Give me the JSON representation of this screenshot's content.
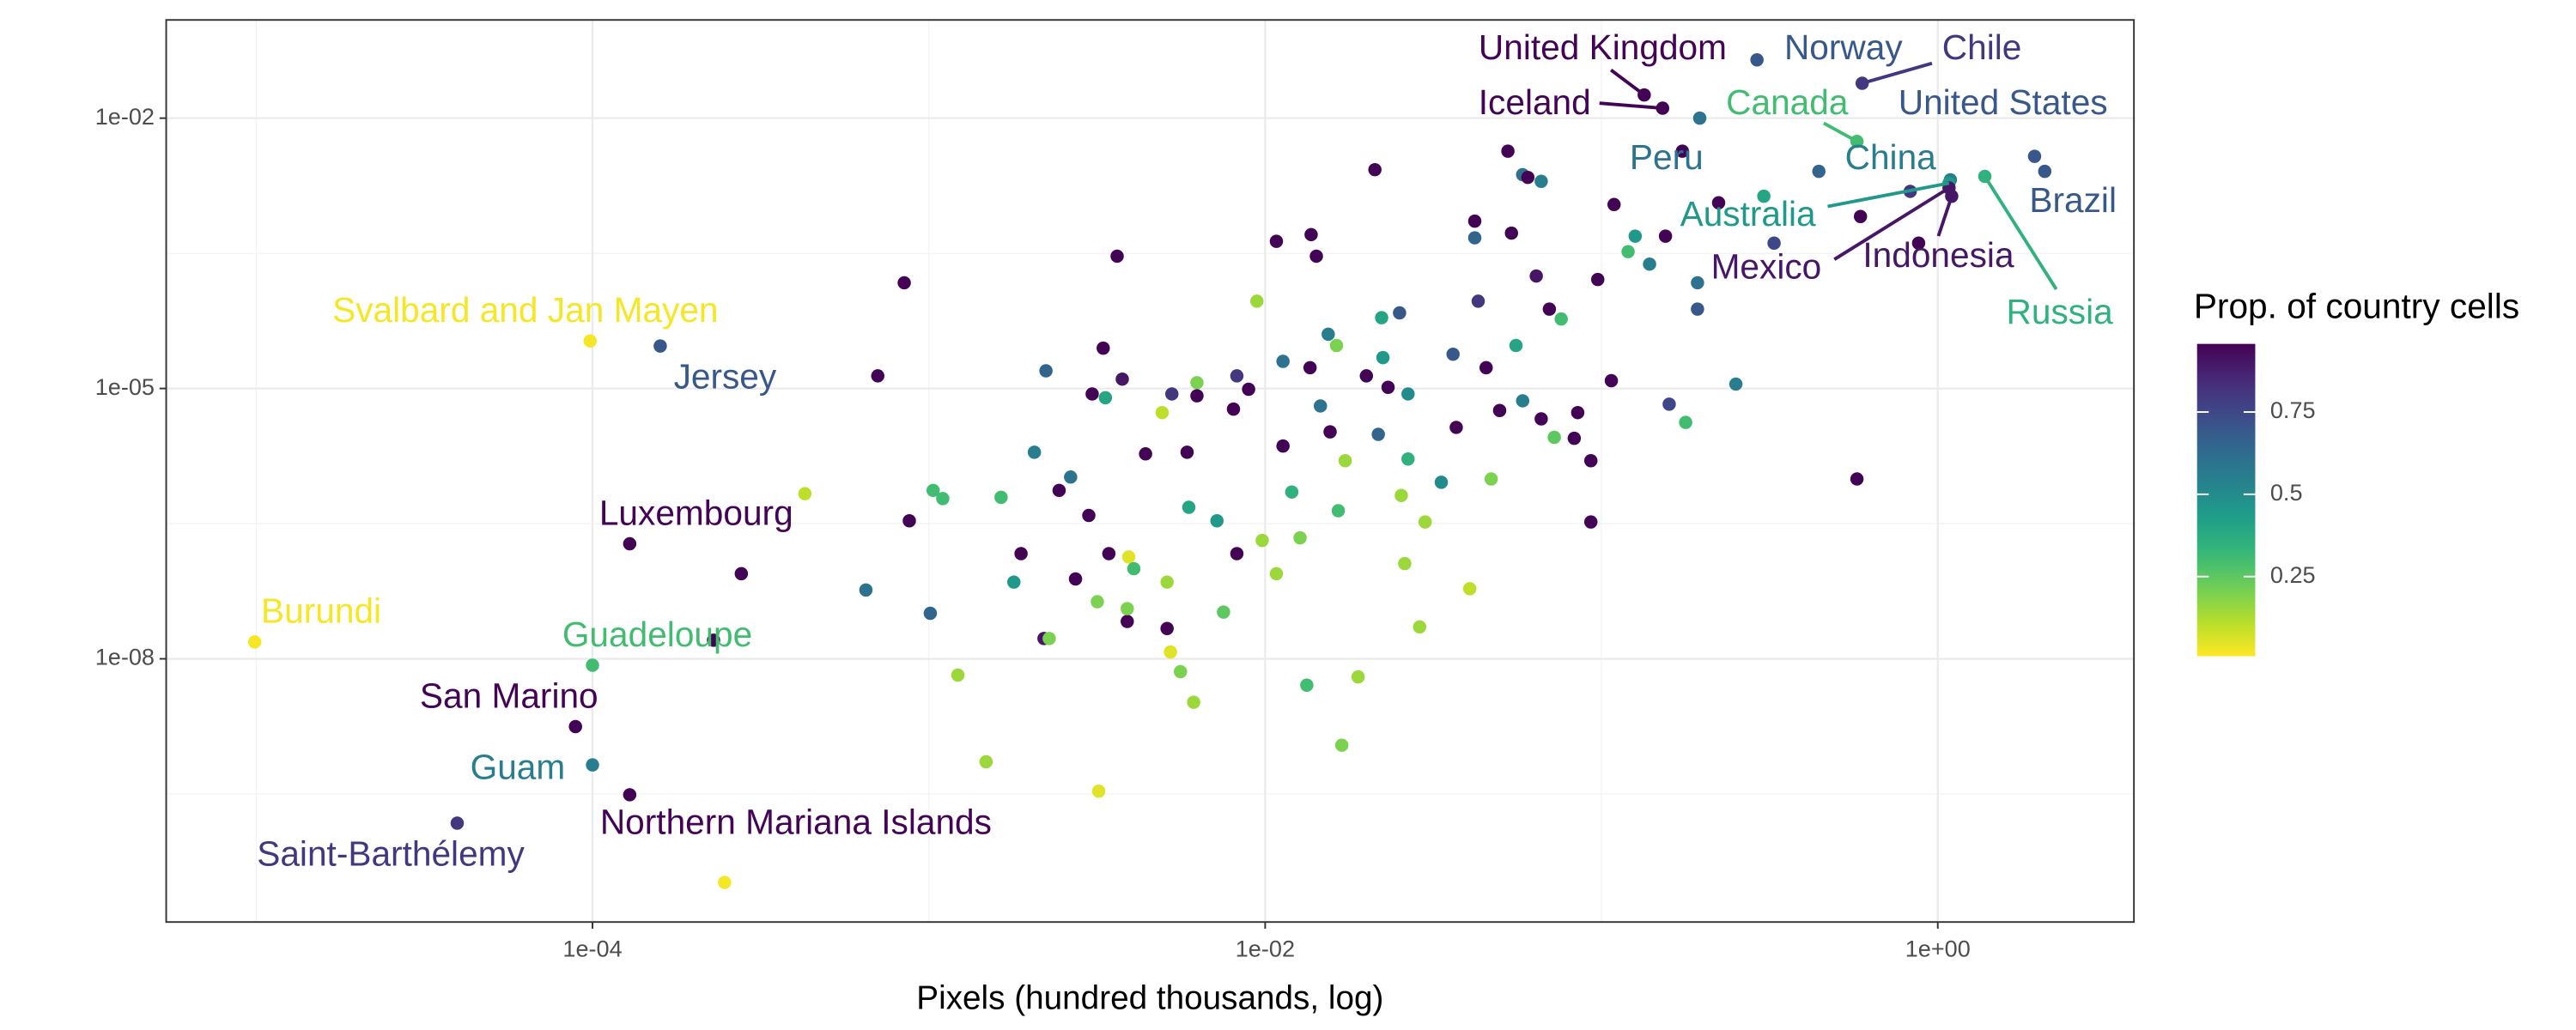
{
  "chart_data": {
    "type": "scatter",
    "x_label": "Pixels (hundred thousands, log)",
    "log_x": true,
    "log_y": true,
    "grid": true,
    "xlim": [
      5.4e-06,
      3.83
    ],
    "ylim": [
      1.2e-11,
      0.123
    ],
    "xticks": [
      {
        "value": 0.0001,
        "label": "1e-04"
      },
      {
        "value": 0.01,
        "label": "1e-02"
      },
      {
        "value": 1,
        "label": "1e+00"
      }
    ],
    "yticks": [
      {
        "value": 1e-08,
        "label": "1e-08"
      },
      {
        "value": 1e-05,
        "label": "1e-05"
      },
      {
        "value": 0.01,
        "label": "1e-02"
      }
    ],
    "xminor": [
      1e-05,
      0.001,
      0.1
    ],
    "yminor": [
      3.16e-10,
      3.16e-07,
      0.000316
    ],
    "legend": {
      "title": "Prop. of country cells",
      "position": "right",
      "colorscale": "viridis",
      "reverse": true,
      "lim": [
        0.008,
        0.957
      ],
      "ticks": [
        0.25,
        0.5,
        0.75
      ]
    },
    "x": [
      0.134,
      0.152,
      0.29,
      0.596,
      0.575,
      1.94,
      1.09,
      2.08,
      0.196,
      1.08,
      1.08,
      1.1,
      1.38,
      9.84e-05,
      0.000159,
      0.000129,
      9.9e-06,
      0.0001,
      8.9e-05,
      0.0001,
      0.000129,
      3.96e-05,
      0.000845,
      0.000705,
      0.000428,
      0.000277,
      0.000229,
      0.000247,
      0.000875,
      0.00103,
      0.0011,
      0.00065,
      0.00101,
      0.00122,
      0.00148,
      0.00164,
      0.00179,
      0.00188,
      0.0022,
      0.00228,
      0.00206,
      0.00223,
      0.00244,
      0.00264,
      0.00273,
      0.00299,
      0.00306,
      0.00317,
      0.0032,
      0.0033,
      0.00335,
      0.00343,
      0.00363,
      0.00376,
      0.00393,
      0.00389,
      0.00389,
      0.00407,
      0.00441,
      0.00494,
      0.00511,
      0.00511,
      0.00523,
      0.00528,
      0.0056,
      0.00586,
      0.00593,
      0.00613,
      0.00627,
      0.00627,
      0.00719,
      0.00752,
      0.00824,
      0.00805,
      0.00824,
      0.00893,
      0.00945,
      0.0098,
      0.0108,
      0.0108,
      0.0113,
      0.0113,
      0.012,
      0.0127,
      0.0133,
      0.0137,
      0.0142,
      0.0136,
      0.0146,
      0.0154,
      0.0156,
      0.0163,
      0.0165,
      0.0169,
      0.0173,
      0.0189,
      0.02,
      0.0212,
      0.0217,
      0.0222,
      0.0224,
      0.0232,
      0.0251,
      0.0254,
      0.026,
      0.0266,
      0.0266,
      0.0288,
      0.0299,
      0.0334,
      0.0362,
      0.037,
      0.0406,
      0.042,
      0.042,
      0.043,
      0.0454,
      0.047,
      0.0498,
      0.0527,
      0.054,
      0.0557,
      0.0583,
      0.0583,
      0.0604,
      0.064,
      0.0662,
      0.0662,
      0.07,
      0.0724,
      0.0759,
      0.083,
      0.085,
      0.093,
      0.093,
      0.0975,
      0.107,
      0.109,
      0.12,
      0.126,
      0.139,
      0.155,
      0.159,
      0.178,
      0.193,
      0.193,
      0.223,
      0.251,
      0.304,
      0.326,
      0.443,
      0.575,
      0.589,
      0.828,
      0.877,
      0.174
    ],
    "y": [
      0.0181,
      0.0129,
      0.0443,
      0.0244,
      0.00552,
      0.00377,
      0.00207,
      0.00257,
      0.01,
      0.0019,
      0.00168,
      0.00136,
      0.00226,
      3.37e-05,
      2.96e-05,
      1.89e-07,
      1.54e-08,
      8.5e-09,
      1.77e-09,
      6.65e-10,
      3.1e-10,
      1.5e-10,
      0.000149,
      1.38e-05,
      6.8e-07,
      8.8e-08,
      1.61e-08,
      3.3e-11,
      3.4e-07,
      7.4e-07,
      6e-07,
      5.8e-08,
      3.2e-08,
      6.6e-09,
      7.2e-10,
      6.2e-07,
      7.1e-08,
      1.47e-07,
      1.68e-08,
      1.68e-08,
      1.96e-06,
      1.57e-05,
      7.4e-07,
      1.04e-06,
      7.7e-08,
      3.9e-07,
      8.7e-06,
      4.3e-08,
      3.4e-10,
      2.8e-05,
      7.9e-06,
      1.47e-07,
      0.000294,
      1.27e-05,
      1.35e-07,
      2.6e-08,
      3.6e-08,
      1e-07,
      1.88e-06,
      5.4e-06,
      7.1e-08,
      2.17e-08,
      1.19e-08,
      8.7e-06,
      7.2e-09,
      1.96e-06,
      4.8e-07,
      3.3e-09,
      1.16e-05,
      8.3e-06,
      3.4e-07,
      3.3e-08,
      1.47e-07,
      5.9e-06,
      1.38e-05,
      9.8e-06,
      9.3e-05,
      2.06e-07,
      8.8e-08,
      0.00043,
      2e-05,
      2.3e-06,
      7.1e-07,
      2.2e-07,
      5.1e-09,
      0.00051,
      0.000294,
      1.7e-05,
      6.4e-06,
      4e-05,
      3.3e-06,
      3e-05,
      4.4e-07,
      1.1e-09,
      1.58e-06,
      6.3e-09,
      1.38e-05,
      0.00268,
      3.1e-06,
      6.1e-05,
      2.2e-05,
      1.03e-05,
      6.9e-05,
      6.5e-07,
      1.14e-07,
      1.65e-06,
      8.7e-06,
      2.26e-08,
      3.3e-07,
      9.1e-07,
      2.4e-05,
      3.7e-06,
      6e-08,
      0.00072,
      0.00047,
      9.3e-05,
      1.7e-05,
      9.9e-07,
      5.7e-06,
      0.0043,
      0.00053,
      3e-05,
      0.00236,
      7.3e-06,
      0.0022,
      0.000177,
      0.00199,
      4.6e-06,
      7.6e-05,
      2.87e-06,
      5.9e-05,
      2.8e-06,
      5.4e-06,
      1.58e-06,
      3.3e-07,
      0.000162,
      1.22e-05,
      0.0011,
      0.00033,
      0.00049,
      0.00024,
      0.00049,
      6.7e-06,
      4.2e-06,
      7.6e-05,
      0.000149,
      0.00115,
      1.12e-05,
      0.00136,
      0.00041,
      0.00257,
      9.9e-07,
      0.00081,
      0.00154,
      0.00041,
      0.0043
    ],
    "color_values": [
      0.95,
      0.95,
      0.7,
      0.8,
      0.3,
      0.7,
      0.55,
      0.7,
      0.6,
      0.45,
      0.9,
      0.9,
      0.35,
      0.02,
      0.7,
      0.95,
      0.02,
      0.3,
      0.95,
      0.55,
      0.95,
      0.8,
      0.95,
      0.95,
      0.1,
      0.95,
      0.95,
      0.02,
      0.95,
      0.3,
      0.3,
      0.6,
      0.65,
      0.15,
      0.15,
      0.3,
      0.45,
      0.95,
      0.9,
      0.2,
      0.55,
      0.65,
      0.95,
      0.6,
      0.95,
      0.95,
      0.95,
      0.2,
      0.05,
      0.95,
      0.4,
      0.95,
      0.95,
      0.9,
      0.05,
      0.95,
      0.2,
      0.3,
      0.95,
      0.1,
      0.15,
      0.95,
      0.05,
      0.8,
      0.2,
      0.95,
      0.4,
      0.15,
      0.2,
      0.95,
      0.45,
      0.25,
      0.95,
      0.95,
      0.8,
      0.95,
      0.15,
      0.15,
      0.15,
      0.95,
      0.6,
      0.95,
      0.35,
      0.2,
      0.3,
      0.95,
      0.95,
      0.95,
      0.6,
      0.55,
      0.95,
      0.2,
      0.3,
      0.2,
      0.15,
      0.15,
      0.95,
      0.95,
      0.65,
      0.4,
      0.45,
      0.95,
      0.7,
      0.15,
      0.15,
      0.35,
      0.5,
      0.15,
      0.15,
      0.5,
      0.7,
      0.95,
      0.1,
      0.95,
      0.65,
      0.8,
      0.95,
      0.2,
      0.95,
      0.95,
      0.95,
      0.4,
      0.6,
      0.55,
      0.95,
      0.9,
      0.55,
      0.95,
      0.95,
      0.25,
      0.3,
      0.95,
      0.95,
      0.95,
      0.95,
      0.95,
      0.95,
      0.95,
      0.3,
      0.45,
      0.55,
      0.95,
      0.75,
      0.3,
      0.7,
      0.6,
      0.95,
      0.55,
      0.4,
      0.75,
      0.65,
      0.95,
      0.95,
      0.8,
      0.95,
      0.95
    ],
    "labels": [
      "United Kingdom",
      "Iceland",
      "Norway",
      "Chile",
      "Canada",
      "United States",
      "China",
      "Brazil",
      "Peru",
      "Australia",
      "Mexico",
      "Indonesia",
      "Russia",
      "Svalbard and Jan Mayen",
      "Jersey",
      "Luxembourg",
      "Burundi",
      "Guadeloupe",
      "San Marino",
      "Guam",
      "Northern Mariana Islands",
      "Saint-Barthélemy",
      null,
      null,
      null,
      null,
      null,
      null,
      null,
      null,
      null,
      null,
      null,
      null,
      null,
      null,
      null,
      null,
      null,
      null,
      null,
      null,
      null,
      null,
      null,
      null,
      null,
      null,
      null,
      null,
      null,
      null,
      null,
      null,
      null,
      null,
      null,
      null,
      null,
      null,
      null,
      null,
      null,
      null,
      null,
      null,
      null,
      null,
      null,
      null,
      null,
      null,
      null,
      null,
      null,
      null,
      null,
      null,
      null,
      null,
      null,
      null,
      null,
      null,
      null,
      null,
      null,
      null,
      null,
      null,
      null,
      null,
      null,
      null,
      null,
      null,
      null,
      null,
      null,
      null,
      null,
      null,
      null,
      null,
      null,
      null,
      null,
      null,
      null,
      null,
      null,
      null,
      null,
      null,
      null,
      null,
      null,
      null,
      null,
      null,
      null,
      null,
      null,
      null,
      null,
      null,
      null,
      null,
      null,
      null,
      null,
      null,
      null,
      null,
      null,
      null,
      null,
      null,
      null,
      null,
      null,
      null,
      null,
      null,
      null,
      null,
      null,
      null,
      null,
      null,
      null,
      null,
      null,
      null,
      null,
      null
    ]
  }
}
